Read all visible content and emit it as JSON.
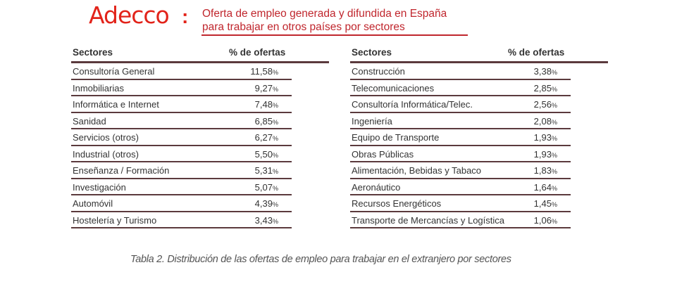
{
  "header": {
    "brand": "Adecco",
    "colon": ":",
    "title_line1": "Oferta de empleo generada y difundida en España",
    "title_line2": "para trabajar en otros países por sectores",
    "accent_color": "#e2231a"
  },
  "tables": [
    {
      "headers": [
        "Sectores",
        "% de ofertas"
      ],
      "rows": [
        {
          "sector": "Consultoría General",
          "value": "11,58"
        },
        {
          "sector": "Inmobiliarias",
          "value": "9,27"
        },
        {
          "sector": "Informática e Internet",
          "value": "7,48"
        },
        {
          "sector": "Sanidad",
          "value": "6,85"
        },
        {
          "sector": "Servicios (otros)",
          "value": "6,27"
        },
        {
          "sector": "Industrial (otros)",
          "value": "5,50"
        },
        {
          "sector": "Enseñanza / Formación",
          "value": "5,31"
        },
        {
          "sector": "Investigación",
          "value": "5,07"
        },
        {
          "sector": "Automóvil",
          "value": "4,39"
        },
        {
          "sector": "Hostelería y Turismo",
          "value": "3,43"
        }
      ]
    },
    {
      "headers": [
        "Sectores",
        "% de ofertas"
      ],
      "rows": [
        {
          "sector": "Construcción",
          "value": "3,38"
        },
        {
          "sector": "Telecomunicaciones",
          "value": "2,85"
        },
        {
          "sector": "Consultoría Informática/Telec.",
          "value": "2,56"
        },
        {
          "sector": "Ingeniería",
          "value": "2,08"
        },
        {
          "sector": "Equipo de Transporte",
          "value": "1,93"
        },
        {
          "sector": "Obras Públicas",
          "value": "1,93"
        },
        {
          "sector": "Alimentación, Bebidas y Tabaco",
          "value": "1,83"
        },
        {
          "sector": "Aeronáutico",
          "value": "1,64"
        },
        {
          "sector": "Recursos Energéticos",
          "value": "1,45"
        },
        {
          "sector": "Transporte de Mercancías y Logística",
          "value": "1,06"
        }
      ]
    }
  ],
  "percent_sign": "%",
  "caption": "Tabla 2. Distribución de las ofertas de empleo para trabajar en el extranjero por sectores"
}
